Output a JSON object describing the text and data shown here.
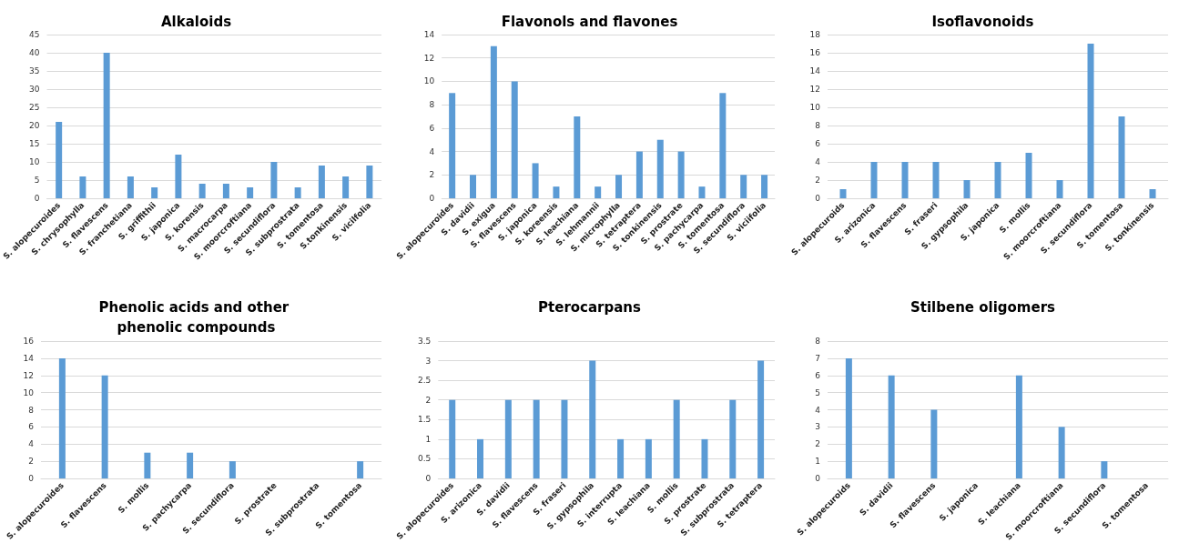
{
  "chart_data": [
    {
      "type": "bar",
      "title": "Alkaloids",
      "categories": [
        "S. alopecuroides",
        "S. chrysophylla",
        "S. flavescens",
        "S. franchetiana",
        "S. griffithii",
        "S. japonica",
        "S. korensis",
        "S. macrocarpa",
        "S. moorcroftiana",
        "S. secundiflora",
        "S. subprostrata",
        "S. tomentosa",
        "S.tonkinensis",
        "S. vicilfolia"
      ],
      "values": [
        21,
        6,
        40,
        6,
        3,
        12,
        4,
        4,
        3,
        10,
        3,
        9,
        6,
        9
      ],
      "color": "#5b9bd5",
      "ylim": [
        0,
        45
      ],
      "yticks": [
        0,
        5,
        10,
        15,
        20,
        25,
        30,
        35,
        40,
        45
      ],
      "grid": "y"
    },
    {
      "type": "bar",
      "title": "Flavonols and flavones",
      "categories": [
        "S. alopecuroides",
        "S. davidii",
        "S. exigua",
        "S. flavescens",
        "S. japonica",
        "S. koreensis",
        "S. leachiana",
        "S. lehmannii",
        "S. microphylla",
        "S. tetraptera",
        "S. tonkinensis",
        "S. prostrate",
        "S. pachycarpa",
        "S. tomentosa",
        "S. secundiflora",
        "S. viciifolia"
      ],
      "values": [
        9,
        2,
        13,
        10,
        3,
        1,
        7,
        1,
        2,
        4,
        5,
        4,
        1,
        9,
        2,
        2
      ],
      "color": "#5b9bd5",
      "ylim": [
        0,
        14
      ],
      "yticks": [
        0,
        2,
        4,
        6,
        8,
        10,
        12,
        14
      ],
      "grid": "y"
    },
    {
      "type": "bar",
      "title": "Isoflavonoids",
      "categories": [
        "S. alopecuroids",
        "S. arizonica",
        "S. flavescens",
        "S. fraseri",
        "S. gypsophila",
        "S. japonica",
        "S. mollis",
        "S. moorcroftiana",
        "S. secundiflora",
        "S. tomentosa",
        "S. tonkinensis"
      ],
      "values": [
        1,
        4,
        4,
        4,
        2,
        4,
        5,
        2,
        17,
        9,
        1
      ],
      "color": "#5b9bd5",
      "ylim": [
        0,
        18
      ],
      "yticks": [
        0,
        2,
        4,
        6,
        8,
        10,
        12,
        14,
        16,
        18
      ],
      "grid": "y"
    },
    {
      "type": "bar",
      "title": "Phenolic acids and other phenolic compounds",
      "categories": [
        "S. alopecuroides",
        "S. flavescens",
        "S. mollis",
        "S. pachycarpa",
        "S. secundiflora",
        "S. prostrate",
        "S. subprostrata",
        "S. tomentosa"
      ],
      "values": [
        14,
        12,
        3,
        3,
        2,
        0,
        0,
        2
      ],
      "color": "#5b9bd5",
      "ylim": [
        0,
        16
      ],
      "yticks": [
        0,
        2,
        4,
        6,
        8,
        10,
        12,
        14,
        16
      ],
      "grid": "y"
    },
    {
      "type": "bar",
      "title": "Pterocarpans",
      "categories": [
        "S. alopecuroides",
        "S. arizonica",
        "S. davidii",
        "S. flavescens",
        "S. fraseri",
        "S. gypsophila",
        "S. interrupta",
        "S. leachiana",
        "S. mollis",
        "S. prostrate",
        "S. subprostrata",
        "S. tetraptera"
      ],
      "values": [
        2,
        1,
        2,
        2,
        2,
        3,
        1,
        1,
        2,
        1,
        2,
        3
      ],
      "color": "#5b9bd5",
      "ylim": [
        0,
        3.5
      ],
      "yticks": [
        0,
        0.5,
        1,
        1.5,
        2,
        2.5,
        3,
        3.5
      ],
      "grid": "y"
    },
    {
      "type": "bar",
      "title": "Stilbene oligomers",
      "categories": [
        "S. alopecuroids",
        "S. davidii",
        "S. flavescens",
        "S. japonica",
        "S. leachiana",
        "S. moorcroftiana",
        "S. secundiflora",
        "S. tomentosa"
      ],
      "values": [
        7,
        6,
        4,
        0,
        6,
        3,
        1,
        0
      ],
      "color": "#5b9bd5",
      "ylim": [
        0,
        8
      ],
      "yticks": [
        0,
        1,
        2,
        3,
        4,
        5,
        6,
        7,
        8
      ],
      "grid": "y"
    }
  ]
}
